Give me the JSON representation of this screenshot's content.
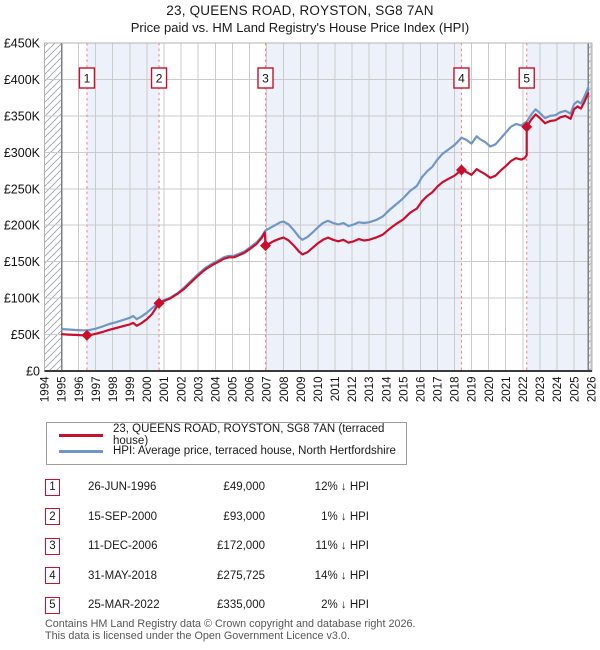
{
  "header": {
    "title": "23, QUEENS ROAD, ROYSTON, SG8 7AN",
    "subtitle": "Price paid vs. HM Land Registry's House Price Index (HPI)"
  },
  "legend": {
    "items": [
      {
        "name": "price-paid",
        "label": "23, QUEENS ROAD, ROYSTON, SG8 7AN (terraced house)",
        "color": "#c8102e"
      },
      {
        "name": "hpi",
        "label": "HPI: Average price, terraced house, North Hertfordshire",
        "color": "#6e96c8"
      }
    ]
  },
  "sales_table": {
    "rows": [
      {
        "num": "1",
        "date": "26-JUN-1996",
        "price": "£49,000",
        "vs_hpi": "12% ↓ HPI"
      },
      {
        "num": "2",
        "date": "15-SEP-2000",
        "price": "£93,000",
        "vs_hpi": "1% ↓ HPI"
      },
      {
        "num": "3",
        "date": "11-DEC-2006",
        "price": "£172,000",
        "vs_hpi": "11% ↓ HPI"
      },
      {
        "num": "4",
        "date": "31-MAY-2018",
        "price": "£275,725",
        "vs_hpi": "14% ↓ HPI"
      },
      {
        "num": "5",
        "date": "25-MAR-2022",
        "price": "£335,000",
        "vs_hpi": "2% ↓ HPI"
      }
    ]
  },
  "footer": {
    "line1": "Contains HM Land Registry data © Crown copyright and database right 2026.",
    "line2": "This data is licensed under the Open Government Licence v3.0."
  },
  "colors": {
    "accent_red": "#c8102e",
    "hpi_blue": "#6e96c8",
    "grid": "#cbcbcb",
    "band": "#edf2fa",
    "dashed": "#f58a8a",
    "hatch": "#9aa0a8",
    "border": "#b3b3b3",
    "axis": "#3a3a3a",
    "hatch_edge": "#808080"
  },
  "chart_data": {
    "type": "line",
    "title": "23, QUEENS ROAD, ROYSTON, SG8 7AN",
    "subtitle": "Price paid vs. HM Land Registry's House Price Index (HPI)",
    "x_axis": {
      "min": 1994,
      "max": 2026.05,
      "tick_years": [
        1994,
        1995,
        1996,
        1997,
        1998,
        1999,
        2000,
        2001,
        2002,
        2003,
        2004,
        2005,
        2006,
        2007,
        2008,
        2009,
        2010,
        2011,
        2012,
        2013,
        2014,
        2015,
        2016,
        2017,
        2018,
        2019,
        2020,
        2021,
        2022,
        2023,
        2024,
        2025,
        2026
      ]
    },
    "y_axis": {
      "min": 0,
      "max": 450000,
      "ticks": [
        {
          "v": 0,
          "label": "£0"
        },
        {
          "v": 50000,
          "label": "£50K"
        },
        {
          "v": 100000,
          "label": "£100K"
        },
        {
          "v": 150000,
          "label": "£150K"
        },
        {
          "v": 200000,
          "label": "£200K"
        },
        {
          "v": 250000,
          "label": "£250K"
        },
        {
          "v": 300000,
          "label": "£300K"
        },
        {
          "v": 350000,
          "label": "£350K"
        },
        {
          "v": 400000,
          "label": "£400K"
        },
        {
          "v": 450000,
          "label": "£450K"
        }
      ]
    },
    "no_data_regions": [
      [
        1994,
        1995.02
      ],
      [
        2025.83,
        2026.05
      ]
    ],
    "shaded_bands": [
      [
        1996.49,
        2000.71
      ],
      [
        2006.94,
        2018.41
      ],
      [
        2022.23,
        2026.05
      ]
    ],
    "sale_events": [
      {
        "n": "1",
        "year": 1996.49,
        "price": 49000
      },
      {
        "n": "2",
        "year": 2000.71,
        "price": 93000
      },
      {
        "n": "3",
        "year": 2006.94,
        "price": 172000
      },
      {
        "n": "4",
        "year": 2018.41,
        "price": 275725
      },
      {
        "n": "5",
        "year": 2022.23,
        "price": 335000
      }
    ],
    "series": [
      {
        "name": "hpi",
        "color": "#6e96c8",
        "points": [
          [
            1995.02,
            57500
          ],
          [
            1995.4,
            57000
          ],
          [
            1995.8,
            56300
          ],
          [
            1996.2,
            55800
          ],
          [
            1996.6,
            56000
          ],
          [
            1997.0,
            58000
          ],
          [
            1997.4,
            61000
          ],
          [
            1997.8,
            64500
          ],
          [
            1998.2,
            67000
          ],
          [
            1998.6,
            70000
          ],
          [
            1999.0,
            73000
          ],
          [
            1999.2,
            75500
          ],
          [
            1999.4,
            71000
          ],
          [
            1999.7,
            75000
          ],
          [
            2000.0,
            80000
          ],
          [
            2000.3,
            86000
          ],
          [
            2000.71,
            94000
          ],
          [
            2001.0,
            97000
          ],
          [
            2001.4,
            101000
          ],
          [
            2001.8,
            107000
          ],
          [
            2002.2,
            115000
          ],
          [
            2002.6,
            124000
          ],
          [
            2003.0,
            133000
          ],
          [
            2003.4,
            141000
          ],
          [
            2003.8,
            147000
          ],
          [
            2004.2,
            152000
          ],
          [
            2004.5,
            156000
          ],
          [
            2004.8,
            158000
          ],
          [
            2005.1,
            158000
          ],
          [
            2005.4,
            161000
          ],
          [
            2005.7,
            164000
          ],
          [
            2006.0,
            169000
          ],
          [
            2006.4,
            176000
          ],
          [
            2006.7,
            184000
          ],
          [
            2006.94,
            193000
          ],
          [
            2007.2,
            196000
          ],
          [
            2007.5,
            200000
          ],
          [
            2007.8,
            204000
          ],
          [
            2008.0,
            205000
          ],
          [
            2008.3,
            201000
          ],
          [
            2008.6,
            193000
          ],
          [
            2008.9,
            184000
          ],
          [
            2009.1,
            180000
          ],
          [
            2009.4,
            184000
          ],
          [
            2009.7,
            190000
          ],
          [
            2010.0,
            197000
          ],
          [
            2010.3,
            203000
          ],
          [
            2010.6,
            206000
          ],
          [
            2010.9,
            203000
          ],
          [
            2011.2,
            201000
          ],
          [
            2011.5,
            203000
          ],
          [
            2011.8,
            199000
          ],
          [
            2012.1,
            201000
          ],
          [
            2012.4,
            204000
          ],
          [
            2012.7,
            203000
          ],
          [
            2013.0,
            204000
          ],
          [
            2013.4,
            207000
          ],
          [
            2013.8,
            212000
          ],
          [
            2014.2,
            221000
          ],
          [
            2014.6,
            229000
          ],
          [
            2015.0,
            237000
          ],
          [
            2015.4,
            247000
          ],
          [
            2015.8,
            254000
          ],
          [
            2016.1,
            266000
          ],
          [
            2016.4,
            274000
          ],
          [
            2016.7,
            280000
          ],
          [
            2017.0,
            290000
          ],
          [
            2017.3,
            298000
          ],
          [
            2017.6,
            303000
          ],
          [
            2018.0,
            310000
          ],
          [
            2018.41,
            320000
          ],
          [
            2018.7,
            317000
          ],
          [
            2019.0,
            312000
          ],
          [
            2019.3,
            322000
          ],
          [
            2019.5,
            318000
          ],
          [
            2019.8,
            314000
          ],
          [
            2020.1,
            308000
          ],
          [
            2020.4,
            311000
          ],
          [
            2020.7,
            319000
          ],
          [
            2021.0,
            327000
          ],
          [
            2021.3,
            335000
          ],
          [
            2021.6,
            339000
          ],
          [
            2021.9,
            337000
          ],
          [
            2022.23,
            342000
          ],
          [
            2022.5,
            352000
          ],
          [
            2022.75,
            359000
          ],
          [
            2023.0,
            354000
          ],
          [
            2023.3,
            347000
          ],
          [
            2023.6,
            350000
          ],
          [
            2023.9,
            351000
          ],
          [
            2024.2,
            355000
          ],
          [
            2024.5,
            357000
          ],
          [
            2024.8,
            353000
          ],
          [
            2025.0,
            366000
          ],
          [
            2025.2,
            370000
          ],
          [
            2025.4,
            367000
          ],
          [
            2025.6,
            376000
          ],
          [
            2025.83,
            389000
          ]
        ]
      },
      {
        "name": "price_paid",
        "color": "#c8102e",
        "points": [
          [
            1995.02,
            50500
          ],
          [
            1995.4,
            50000
          ],
          [
            1995.8,
            49500
          ],
          [
            1996.2,
            49000
          ],
          [
            1996.49,
            49000
          ],
          [
            1996.8,
            50000
          ],
          [
            1997.0,
            51000
          ],
          [
            1997.4,
            53500
          ],
          [
            1997.8,
            56500
          ],
          [
            1998.2,
            59000
          ],
          [
            1998.6,
            61500
          ],
          [
            1999.0,
            64000
          ],
          [
            1999.2,
            66000
          ],
          [
            1999.4,
            62000
          ],
          [
            1999.7,
            66000
          ],
          [
            2000.0,
            71000
          ],
          [
            2000.3,
            78000
          ],
          [
            2000.71,
            93000
          ],
          [
            2001.0,
            96000
          ],
          [
            2001.4,
            100000
          ],
          [
            2001.8,
            106000
          ],
          [
            2002.2,
            113000
          ],
          [
            2002.6,
            122000
          ],
          [
            2003.0,
            131000
          ],
          [
            2003.4,
            139000
          ],
          [
            2003.8,
            145000
          ],
          [
            2004.2,
            150000
          ],
          [
            2004.5,
            154000
          ],
          [
            2004.8,
            156000
          ],
          [
            2005.1,
            156000
          ],
          [
            2005.4,
            159000
          ],
          [
            2005.7,
            162000
          ],
          [
            2006.0,
            167000
          ],
          [
            2006.4,
            174000
          ],
          [
            2006.7,
            182000
          ],
          [
            2006.9,
            190000
          ],
          [
            2006.94,
            172000
          ],
          [
            2007.1,
            174000
          ],
          [
            2007.4,
            178000
          ],
          [
            2007.7,
            181000
          ],
          [
            2008.0,
            183000
          ],
          [
            2008.3,
            179000
          ],
          [
            2008.6,
            172000
          ],
          [
            2008.9,
            164000
          ],
          [
            2009.1,
            160000
          ],
          [
            2009.4,
            163000
          ],
          [
            2009.7,
            169000
          ],
          [
            2010.0,
            175000
          ],
          [
            2010.3,
            180000
          ],
          [
            2010.6,
            183000
          ],
          [
            2010.9,
            180000
          ],
          [
            2011.2,
            178000
          ],
          [
            2011.5,
            180000
          ],
          [
            2011.8,
            176000
          ],
          [
            2012.1,
            178000
          ],
          [
            2012.4,
            181000
          ],
          [
            2012.7,
            179000
          ],
          [
            2013.0,
            180000
          ],
          [
            2013.4,
            183000
          ],
          [
            2013.8,
            187000
          ],
          [
            2014.2,
            195000
          ],
          [
            2014.6,
            202000
          ],
          [
            2015.0,
            208000
          ],
          [
            2015.4,
            217000
          ],
          [
            2015.8,
            223000
          ],
          [
            2016.1,
            233000
          ],
          [
            2016.4,
            240000
          ],
          [
            2016.7,
            245000
          ],
          [
            2017.0,
            253000
          ],
          [
            2017.3,
            259000
          ],
          [
            2017.6,
            263000
          ],
          [
            2018.0,
            268000
          ],
          [
            2018.41,
            275725
          ],
          [
            2018.7,
            273000
          ],
          [
            2019.0,
            269000
          ],
          [
            2019.3,
            277000
          ],
          [
            2019.5,
            274000
          ],
          [
            2019.8,
            270000
          ],
          [
            2020.1,
            265000
          ],
          [
            2020.4,
            268000
          ],
          [
            2020.7,
            275000
          ],
          [
            2021.0,
            281000
          ],
          [
            2021.3,
            288000
          ],
          [
            2021.6,
            292000
          ],
          [
            2021.9,
            290000
          ],
          [
            2022.1,
            292000
          ],
          [
            2022.23,
            296000
          ],
          [
            2022.23,
            335000
          ],
          [
            2022.5,
            345000
          ],
          [
            2022.75,
            352000
          ],
          [
            2023.0,
            347000
          ],
          [
            2023.3,
            340000
          ],
          [
            2023.6,
            343000
          ],
          [
            2023.9,
            344000
          ],
          [
            2024.2,
            348000
          ],
          [
            2024.5,
            350000
          ],
          [
            2024.8,
            346000
          ],
          [
            2025.0,
            359000
          ],
          [
            2025.2,
            363000
          ],
          [
            2025.4,
            360000
          ],
          [
            2025.6,
            369000
          ],
          [
            2025.83,
            381000
          ]
        ]
      }
    ]
  }
}
